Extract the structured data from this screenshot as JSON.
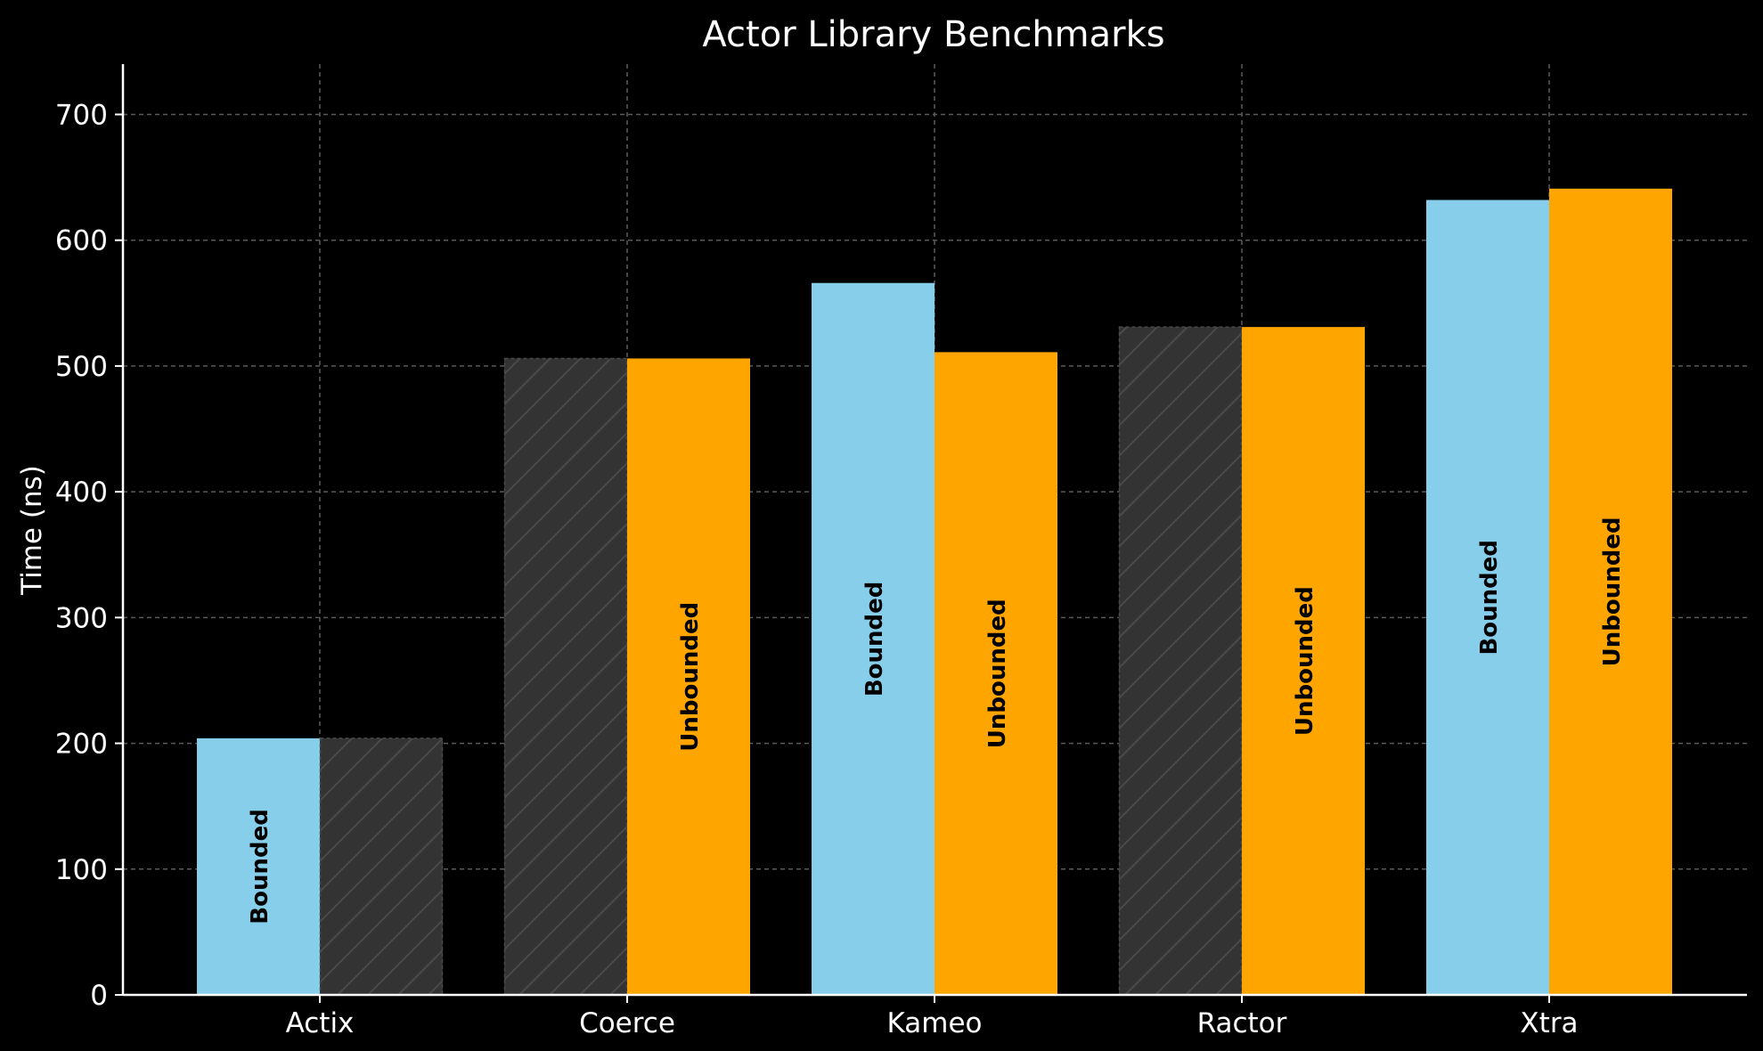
{
  "chart_data": {
    "type": "bar",
    "title": "Actor Library Benchmarks",
    "xlabel": "",
    "ylabel": "Time (ns)",
    "ylim": [
      0,
      740
    ],
    "yticks": [
      0,
      100,
      200,
      300,
      400,
      500,
      600,
      700
    ],
    "categories": [
      "Actix",
      "Coerce",
      "Kameo",
      "Ractor",
      "Xtra"
    ],
    "grid": true,
    "series": [
      {
        "values": [
          204,
          506,
          566,
          531,
          632
        ],
        "label_text": "Bounded",
        "color": "#87CEEB",
        "placeholder": [
          false,
          true,
          false,
          true,
          false
        ]
      },
      {
        "values": [
          204,
          506,
          511,
          531,
          641
        ],
        "label_text": "Unbounded",
        "color": "#FFA500",
        "placeholder": [
          true,
          false,
          false,
          false,
          false
        ]
      }
    ],
    "placeholder_color": "#333333",
    "background": "#000000"
  }
}
